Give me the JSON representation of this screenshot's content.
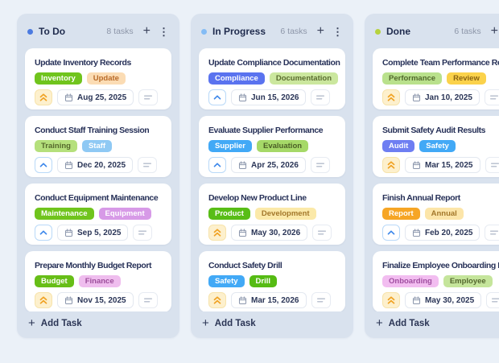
{
  "icons": {
    "add": "+",
    "menu": "⋮"
  },
  "board": {
    "columns": [
      {
        "title": "To Do",
        "dot_color": "#4c7be0",
        "count_label": "8 tasks",
        "add_task_label": "Add Task",
        "partial_card_visible": true,
        "tasks": [
          {
            "title": "Update Inventory Records",
            "priority": "high",
            "due_date": "Aug 25, 2025",
            "tags": [
              {
                "label": "Inventory",
                "bg": "#70c41d",
                "fg": "#ffffff"
              },
              {
                "label": "Update",
                "bg": "#fbdcb4",
                "fg": "#b96a28"
              }
            ]
          },
          {
            "title": "Conduct Staff Training Session",
            "priority": "medium",
            "due_date": "Dec 20, 2025",
            "tags": [
              {
                "label": "Training",
                "bg": "#b5e07c",
                "fg": "#55682c"
              },
              {
                "label": "Staff",
                "bg": "#8fc9f4",
                "fg": "#ffffff"
              }
            ]
          },
          {
            "title": "Conduct Equipment Maintenance",
            "priority": "medium",
            "due_date": "Sep 5, 2025",
            "tags": [
              {
                "label": "Maintenance",
                "bg": "#70c41d",
                "fg": "#ffffff"
              },
              {
                "label": "Equipment",
                "bg": "#d79ae7",
                "fg": "#ffffff"
              }
            ]
          },
          {
            "title": "Prepare Monthly Budget Report",
            "priority": "high",
            "due_date": "Nov 15, 2025",
            "tags": [
              {
                "label": "Budget",
                "bg": "#67be17",
                "fg": "#ffffff"
              },
              {
                "label": "Finance",
                "bg": "#efbdee",
                "fg": "#9c4e9a"
              }
            ]
          }
        ]
      },
      {
        "title": "In Progress",
        "dot_color": "#84bcf5",
        "count_label": "6 tasks",
        "add_task_label": "Add Task",
        "partial_card_visible": true,
        "tasks": [
          {
            "title": "Update Compliance Documentation",
            "priority": "medium",
            "due_date": "Jun 15, 2026",
            "tags": [
              {
                "label": "Compliance",
                "bg": "#5a73ef",
                "fg": "#ffffff"
              },
              {
                "label": "Documentation",
                "bg": "#cbe79e",
                "fg": "#5a6c2f"
              }
            ]
          },
          {
            "title": "Evaluate Supplier Performance",
            "priority": "medium",
            "due_date": "Apr 25, 2026",
            "tags": [
              {
                "label": "Supplier",
                "bg": "#42a9f6",
                "fg": "#ffffff"
              },
              {
                "label": "Evaluation",
                "bg": "#a6d968",
                "fg": "#4b5f26"
              }
            ]
          },
          {
            "title": "Develop New Product Line",
            "priority": "high",
            "due_date": "May 30, 2026",
            "tags": [
              {
                "label": "Product",
                "bg": "#58bd16",
                "fg": "#ffffff"
              },
              {
                "label": "Development",
                "bg": "#fbe9a9",
                "fg": "#a3772a"
              }
            ]
          },
          {
            "title": "Conduct Safety Drill",
            "priority": "high",
            "due_date": "Mar 15, 2026",
            "tags": [
              {
                "label": "Safety",
                "bg": "#42a9f6",
                "fg": "#ffffff"
              },
              {
                "label": "Drill",
                "bg": "#55bb13",
                "fg": "#ffffff"
              }
            ]
          }
        ]
      },
      {
        "title": "Done",
        "dot_color": "#b6d23e",
        "count_label": "6 tasks",
        "add_task_label": "Add Task",
        "partial_card_visible": true,
        "tasks": [
          {
            "title": "Complete Team Performance Reviews",
            "priority": "high",
            "due_date": "Jan 10, 2025",
            "tags": [
              {
                "label": "Performance",
                "bg": "#b9e18c",
                "fg": "#51682c"
              },
              {
                "label": "Review",
                "bg": "#fbd24b",
                "fg": "#8a6414"
              }
            ]
          },
          {
            "title": "Submit Safety Audit Results",
            "priority": "high",
            "due_date": "Mar 15, 2025",
            "tags": [
              {
                "label": "Audit",
                "bg": "#6e7ef2",
                "fg": "#ffffff"
              },
              {
                "label": "Safety",
                "bg": "#42a9f6",
                "fg": "#ffffff"
              }
            ]
          },
          {
            "title": "Finish Annual Report",
            "priority": "medium",
            "due_date": "Feb 20, 2025",
            "tags": [
              {
                "label": "Report",
                "bg": "#f6a525",
                "fg": "#ffffff"
              },
              {
                "label": "Annual",
                "bg": "#fce5a9",
                "fg": "#a3772a"
              }
            ]
          },
          {
            "title": "Finalize Employee Onboarding Process",
            "priority": "high",
            "due_date": "May 30, 2025",
            "tags": [
              {
                "label": "Onboarding",
                "bg": "#f2bdf0",
                "fg": "#a04ea0"
              },
              {
                "label": "Employee",
                "bg": "#c5e59b",
                "fg": "#55682f"
              }
            ]
          }
        ]
      }
    ]
  }
}
